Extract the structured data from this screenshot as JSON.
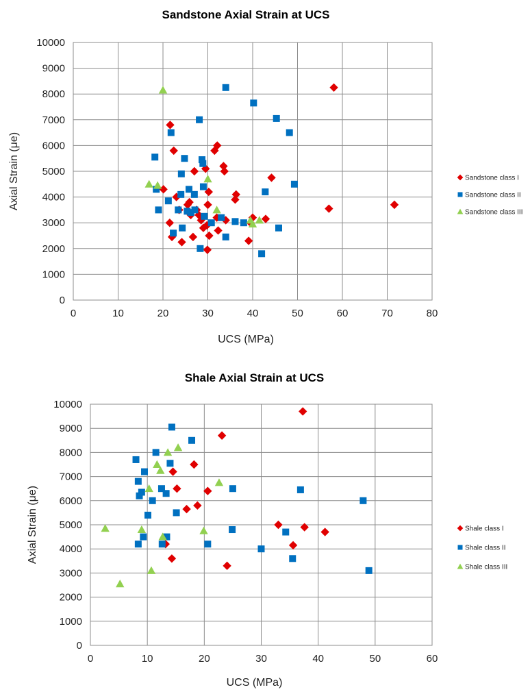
{
  "chart_data": [
    {
      "type": "scatter",
      "title": "Sandstone Axial Strain at UCS",
      "xlabel": "UCS (MPa)",
      "ylabel": "Axial Strain (μe)",
      "xlim": [
        0,
        80
      ],
      "ylim": [
        0,
        10000
      ],
      "xticks": [
        "0",
        "10",
        "20",
        "30",
        "40",
        "50",
        "60",
        "70",
        "80"
      ],
      "yticks": [
        "0",
        "1000",
        "2000",
        "3000",
        "4000",
        "5000",
        "6000",
        "7000",
        "8000",
        "9000",
        "10000"
      ],
      "grid": true,
      "legend_position": "right",
      "series": [
        {
          "name": "Sandstone class I",
          "marker": "diamond",
          "color": "#e00000",
          "points": [
            [
              21.6,
              6800
            ],
            [
              22.4,
              5800
            ],
            [
              20.1,
              4300
            ],
            [
              21.5,
              3000
            ],
            [
              22.0,
              2450
            ],
            [
              23.0,
              4000
            ],
            [
              23.6,
              3500
            ],
            [
              24.2,
              2250
            ],
            [
              25.5,
              3700
            ],
            [
              25.9,
              3800
            ],
            [
              26.2,
              3300
            ],
            [
              26.7,
              2450
            ],
            [
              27.0,
              5000
            ],
            [
              27.5,
              3500
            ],
            [
              28.0,
              3300
            ],
            [
              28.5,
              3100
            ],
            [
              29.0,
              2800
            ],
            [
              29.5,
              5100
            ],
            [
              29.8,
              2900
            ],
            [
              29.9,
              1950
            ],
            [
              30.0,
              3700
            ],
            [
              30.2,
              4200
            ],
            [
              30.3,
              2500
            ],
            [
              31.5,
              5800
            ],
            [
              32.1,
              6000
            ],
            [
              32.3,
              2700
            ],
            [
              32.0,
              3200
            ],
            [
              33.5,
              5200
            ],
            [
              33.7,
              5000
            ],
            [
              34.0,
              3100
            ],
            [
              36.1,
              3900
            ],
            [
              36.3,
              4100
            ],
            [
              39.1,
              2300
            ],
            [
              39.5,
              3000
            ],
            [
              40.0,
              3200
            ],
            [
              42.9,
              3150
            ],
            [
              44.2,
              4750
            ],
            [
              57.0,
              3550
            ],
            [
              58.1,
              8250
            ],
            [
              71.6,
              3700
            ]
          ]
        },
        {
          "name": "Sandstone class II",
          "marker": "square",
          "color": "#0070c0",
          "points": [
            [
              18.2,
              5550
            ],
            [
              18.5,
              4300
            ],
            [
              19.0,
              3500
            ],
            [
              21.2,
              3850
            ],
            [
              21.8,
              6500
            ],
            [
              22.3,
              2600
            ],
            [
              23.4,
              3500
            ],
            [
              24.1,
              4900
            ],
            [
              24.0,
              4100
            ],
            [
              24.3,
              2800
            ],
            [
              24.8,
              5500
            ],
            [
              25.4,
              3450
            ],
            [
              25.8,
              4300
            ],
            [
              26.2,
              3400
            ],
            [
              27.0,
              4100
            ],
            [
              27.1,
              3500
            ],
            [
              28.1,
              7000
            ],
            [
              28.3,
              2000
            ],
            [
              28.7,
              5450
            ],
            [
              28.9,
              5300
            ],
            [
              29.0,
              4400
            ],
            [
              29.2,
              3250
            ],
            [
              30.8,
              3000
            ],
            [
              33.0,
              3200
            ],
            [
              34.0,
              2450
            ],
            [
              34.0,
              8250
            ],
            [
              36.1,
              3050
            ],
            [
              38.0,
              3000
            ],
            [
              40.2,
              7650
            ],
            [
              42.0,
              1800
            ],
            [
              42.8,
              4200
            ],
            [
              45.3,
              7050
            ],
            [
              45.8,
              2800
            ],
            [
              48.2,
              6500
            ],
            [
              49.3,
              4500
            ]
          ]
        },
        {
          "name": "Sandstone class III",
          "marker": "triangle",
          "color": "#92d050",
          "points": [
            [
              16.9,
              4500
            ],
            [
              18.8,
              4450
            ],
            [
              20.0,
              8150
            ],
            [
              30.0,
              4700
            ],
            [
              32.0,
              3500
            ],
            [
              39.5,
              3100
            ],
            [
              40.0,
              2950
            ],
            [
              41.5,
              3100
            ]
          ]
        }
      ]
    },
    {
      "type": "scatter",
      "title": "Shale Axial Strain at UCS",
      "xlabel": "UCS (MPa)",
      "ylabel": "Axial Strain (μe)",
      "xlim": [
        0,
        60
      ],
      "ylim": [
        0,
        10000
      ],
      "xticks": [
        "0",
        "10",
        "20",
        "30",
        "40",
        "50",
        "60"
      ],
      "yticks": [
        "0",
        "1000",
        "2000",
        "3000",
        "4000",
        "5000",
        "6000",
        "7000",
        "8000",
        "9000",
        "10000"
      ],
      "grid": true,
      "legend_position": "right",
      "series": [
        {
          "name": "Shale class I",
          "marker": "diamond",
          "color": "#e00000",
          "points": [
            [
              13.2,
              4200
            ],
            [
              14.3,
              3600
            ],
            [
              14.5,
              7200
            ],
            [
              15.2,
              6500
            ],
            [
              16.9,
              5650
            ],
            [
              18.2,
              7500
            ],
            [
              18.8,
              5800
            ],
            [
              20.6,
              6400
            ],
            [
              23.1,
              8700
            ],
            [
              24.0,
              3300
            ],
            [
              33.0,
              5000
            ],
            [
              35.6,
              4150
            ],
            [
              37.3,
              9700
            ],
            [
              37.6,
              4900
            ],
            [
              41.2,
              4700
            ]
          ]
        },
        {
          "name": "Shale class II",
          "marker": "square",
          "color": "#0070c0",
          "points": [
            [
              8.0,
              7700
            ],
            [
              8.4,
              6800
            ],
            [
              8.6,
              6200
            ],
            [
              8.4,
              4200
            ],
            [
              9.0,
              6350
            ],
            [
              9.5,
              7200
            ],
            [
              9.3,
              4500
            ],
            [
              10.1,
              5400
            ],
            [
              10.9,
              6000
            ],
            [
              11.5,
              8000
            ],
            [
              12.5,
              6500
            ],
            [
              12.6,
              4200
            ],
            [
              13.3,
              6300
            ],
            [
              13.4,
              4500
            ],
            [
              14.0,
              7550
            ],
            [
              14.3,
              9050
            ],
            [
              15.1,
              5500
            ],
            [
              17.8,
              8500
            ],
            [
              20.6,
              4200
            ],
            [
              24.9,
              4800
            ],
            [
              25.0,
              6500
            ],
            [
              30.0,
              4000
            ],
            [
              34.3,
              4700
            ],
            [
              35.5,
              3600
            ],
            [
              36.9,
              6450
            ],
            [
              47.9,
              6000
            ],
            [
              48.9,
              3100
            ]
          ]
        },
        {
          "name": "Shale class III",
          "marker": "triangle",
          "color": "#92d050",
          "points": [
            [
              2.6,
              4850
            ],
            [
              5.2,
              2550
            ],
            [
              9.0,
              4800
            ],
            [
              10.3,
              6500
            ],
            [
              10.7,
              3100
            ],
            [
              11.7,
              7500
            ],
            [
              12.3,
              7250
            ],
            [
              12.7,
              4500
            ],
            [
              13.6,
              8000
            ],
            [
              15.4,
              8200
            ],
            [
              19.9,
              4750
            ],
            [
              22.6,
              6750
            ]
          ]
        }
      ]
    }
  ]
}
